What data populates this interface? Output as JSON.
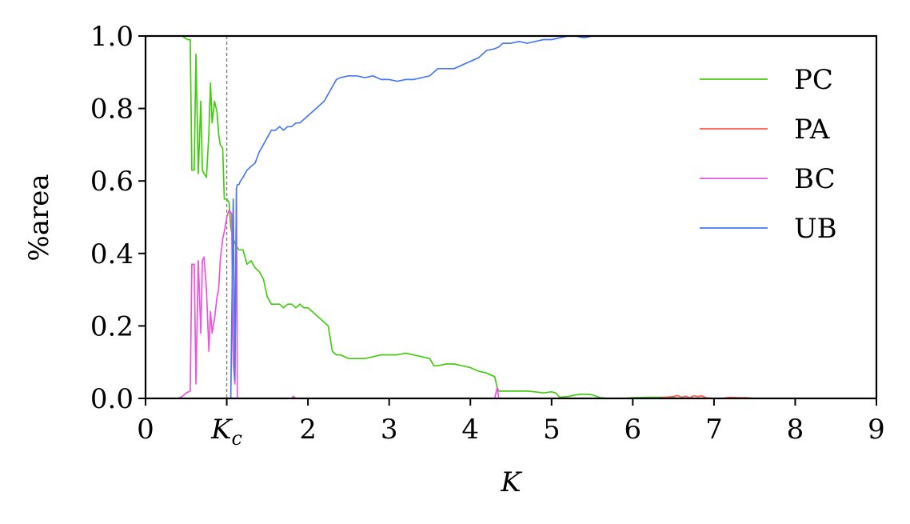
{
  "chart_data": {
    "type": "line",
    "xlabel": "K",
    "ylabel": "%area",
    "xlim": [
      0,
      9
    ],
    "ylim": [
      0.0,
      1.0
    ],
    "x_ticks": [
      {
        "value": 0,
        "label": "0"
      },
      {
        "value": 1,
        "label": "K",
        "sub": "c"
      },
      {
        "value": 2,
        "label": "2"
      },
      {
        "value": 3,
        "label": "3"
      },
      {
        "value": 4,
        "label": "4"
      },
      {
        "value": 5,
        "label": "5"
      },
      {
        "value": 6,
        "label": "6"
      },
      {
        "value": 7,
        "label": "7"
      },
      {
        "value": 8,
        "label": "8"
      },
      {
        "value": 9,
        "label": "9"
      }
    ],
    "y_ticks": [
      {
        "value": 0.0,
        "label": "0.0"
      },
      {
        "value": 0.2,
        "label": "0.2"
      },
      {
        "value": 0.4,
        "label": "0.4"
      },
      {
        "value": 0.6,
        "label": "0.6"
      },
      {
        "value": 0.8,
        "label": "0.8"
      },
      {
        "value": 1.0,
        "label": "1.0"
      }
    ],
    "reference_line": {
      "x": 1.0,
      "style": "dashed",
      "color": "#808080"
    },
    "grid": false,
    "legend_position": "upper-right",
    "series": [
      {
        "name": "PC",
        "color": "#44cc11",
        "x": [
          0.3,
          0.45,
          0.52,
          0.55,
          0.57,
          0.6,
          0.62,
          0.65,
          0.68,
          0.7,
          0.72,
          0.75,
          0.78,
          0.8,
          0.82,
          0.85,
          0.88,
          0.9,
          0.92,
          0.95,
          0.97,
          1.0,
          1.03,
          1.05,
          1.08,
          1.1,
          1.12,
          1.15,
          1.2,
          1.25,
          1.3,
          1.35,
          1.4,
          1.45,
          1.5,
          1.55,
          1.6,
          1.65,
          1.7,
          1.75,
          1.8,
          1.85,
          1.9,
          1.95,
          2.0,
          2.05,
          2.1,
          2.15,
          2.2,
          2.25,
          2.3,
          2.35,
          2.4,
          2.5,
          2.6,
          2.7,
          2.8,
          2.9,
          3.0,
          3.1,
          3.2,
          3.3,
          3.4,
          3.5,
          3.55,
          3.6,
          3.7,
          3.8,
          3.9,
          4.0,
          4.1,
          4.2,
          4.3,
          4.33,
          4.35,
          4.4,
          4.5,
          4.6,
          4.7,
          4.8,
          4.9,
          5.0,
          5.05,
          5.1,
          5.2,
          5.3,
          5.4,
          5.5,
          5.6,
          5.7,
          5.8,
          5.9,
          6.0,
          6.2,
          6.4,
          6.6,
          6.8,
          7.0,
          7.5,
          8.0,
          9.0
        ],
        "y": [
          1.0,
          1.0,
          0.99,
          0.99,
          0.63,
          0.63,
          0.95,
          0.62,
          0.82,
          0.63,
          0.62,
          0.61,
          0.73,
          0.87,
          0.76,
          0.82,
          0.79,
          0.73,
          0.7,
          0.69,
          0.55,
          0.55,
          0.54,
          0.47,
          0.44,
          0.43,
          0.42,
          0.41,
          0.41,
          0.37,
          0.38,
          0.36,
          0.35,
          0.33,
          0.28,
          0.26,
          0.26,
          0.26,
          0.25,
          0.26,
          0.26,
          0.25,
          0.26,
          0.25,
          0.25,
          0.24,
          0.23,
          0.22,
          0.21,
          0.2,
          0.13,
          0.12,
          0.12,
          0.11,
          0.11,
          0.11,
          0.115,
          0.12,
          0.12,
          0.12,
          0.125,
          0.12,
          0.115,
          0.11,
          0.09,
          0.09,
          0.095,
          0.095,
          0.09,
          0.085,
          0.075,
          0.07,
          0.06,
          0.03,
          0.02,
          0.02,
          0.02,
          0.02,
          0.02,
          0.018,
          0.015,
          0.018,
          0.015,
          0.003,
          0.005,
          0.01,
          0.012,
          0.01,
          0.002,
          0.0,
          0.0,
          0.0,
          0.002,
          0.003,
          0.003,
          0.0,
          0.0,
          0.0,
          0.0,
          0.0,
          0.0
        ]
      },
      {
        "name": "PA",
        "color": "#ff5a4a",
        "x": [
          0.0,
          6.3,
          6.4,
          6.5,
          6.55,
          6.6,
          6.65,
          6.7,
          6.75,
          6.8,
          6.85,
          6.9,
          7.0,
          7.1,
          7.2,
          7.3,
          7.4,
          7.5,
          9.0
        ],
        "y": [
          0.0,
          0.0,
          0.003,
          0.005,
          0.008,
          0.003,
          0.006,
          0.002,
          0.007,
          0.005,
          0.007,
          0.002,
          0.0,
          0.0,
          0.003,
          0.002,
          0.002,
          0.0,
          0.0
        ]
      },
      {
        "name": "BC",
        "color": "#ee55dd",
        "x": [
          0.0,
          0.3,
          0.4,
          0.45,
          0.5,
          0.55,
          0.57,
          0.6,
          0.62,
          0.65,
          0.68,
          0.7,
          0.72,
          0.75,
          0.78,
          0.8,
          0.82,
          0.85,
          0.88,
          0.9,
          0.92,
          0.95,
          0.97,
          1.0,
          1.03,
          1.06,
          1.08,
          1.1,
          1.12,
          1.13,
          1.15,
          1.17,
          1.2,
          1.8,
          1.82,
          1.85,
          1.9,
          4.3,
          4.33,
          4.35,
          4.4,
          9.0
        ],
        "y": [
          0.0,
          0.0,
          0.0,
          0.005,
          0.015,
          0.02,
          0.37,
          0.37,
          0.04,
          0.38,
          0.18,
          0.38,
          0.39,
          0.3,
          0.13,
          0.24,
          0.18,
          0.22,
          0.28,
          0.3,
          0.38,
          0.44,
          0.46,
          0.5,
          0.52,
          0.51,
          0.1,
          0.04,
          0.58,
          0.0,
          0.0,
          0.0,
          0.0,
          0.0,
          0.006,
          0.0,
          0.0,
          0.0,
          0.03,
          0.0,
          0.0,
          0.0
        ]
      },
      {
        "name": "UB",
        "color": "#4a78f0",
        "x": [
          0.0,
          1.05,
          1.08,
          1.1,
          1.12,
          1.13,
          1.15,
          1.17,
          1.2,
          1.25,
          1.3,
          1.35,
          1.4,
          1.45,
          1.5,
          1.55,
          1.6,
          1.65,
          1.7,
          1.75,
          1.8,
          1.85,
          1.9,
          1.95,
          2.0,
          2.05,
          2.1,
          2.15,
          2.2,
          2.25,
          2.3,
          2.35,
          2.4,
          2.5,
          2.6,
          2.7,
          2.8,
          2.9,
          3.0,
          3.1,
          3.2,
          3.3,
          3.4,
          3.5,
          3.55,
          3.6,
          3.7,
          3.8,
          3.9,
          4.0,
          4.1,
          4.2,
          4.3,
          4.35,
          4.4,
          4.5,
          4.6,
          4.7,
          4.8,
          4.9,
          5.0,
          5.1,
          5.2,
          5.3,
          5.4,
          5.5,
          5.6,
          5.7,
          5.8,
          5.9,
          6.0,
          6.2,
          6.4,
          6.6,
          6.8,
          7.0,
          7.5,
          9.0
        ],
        "y": [
          0.0,
          0.0,
          0.55,
          0.05,
          0.58,
          0.59,
          0.59,
          0.6,
          0.61,
          0.63,
          0.64,
          0.65,
          0.68,
          0.7,
          0.72,
          0.74,
          0.74,
          0.75,
          0.74,
          0.75,
          0.75,
          0.76,
          0.76,
          0.77,
          0.78,
          0.79,
          0.8,
          0.81,
          0.82,
          0.84,
          0.86,
          0.88,
          0.885,
          0.89,
          0.89,
          0.885,
          0.89,
          0.88,
          0.88,
          0.875,
          0.88,
          0.88,
          0.885,
          0.89,
          0.9,
          0.91,
          0.91,
          0.91,
          0.92,
          0.93,
          0.94,
          0.96,
          0.965,
          0.97,
          0.98,
          0.98,
          0.985,
          0.98,
          0.985,
          0.99,
          0.99,
          0.995,
          1.0,
          1.0,
          0.995,
          1.0,
          1.0,
          1.0,
          1.0,
          1.0,
          1.0,
          1.0,
          1.0,
          1.0,
          1.0,
          1.0,
          1.0,
          1.0
        ]
      }
    ]
  }
}
